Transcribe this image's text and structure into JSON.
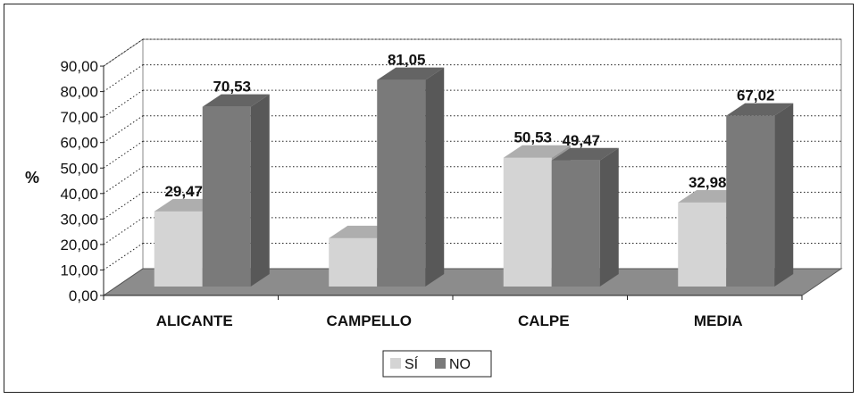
{
  "chart_data": {
    "type": "bar",
    "view": "3d-clustered-column",
    "categories": [
      "ALICANTE",
      "CAMPELLO",
      "CALPE",
      "MEDIA"
    ],
    "series": [
      {
        "name": "SÍ",
        "values": [
          29.47,
          18.95,
          50.53,
          32.98
        ],
        "labels": [
          "29,47",
          "",
          "50,53",
          "32,98"
        ],
        "color": "#d4d4d4"
      },
      {
        "name": "NO",
        "values": [
          70.53,
          81.05,
          49.47,
          67.02
        ],
        "labels": [
          "70,53",
          "81,05",
          "49,47",
          "67,02"
        ],
        "color": "#7a7a7a"
      }
    ],
    "ylabel": "%",
    "ylim": [
      0,
      90
    ],
    "yticks": [
      "0,00",
      "10,00",
      "20,00",
      "30,00",
      "40,00",
      "50,00",
      "60,00",
      "70,00",
      "80,00",
      "90,00"
    ],
    "grid": true,
    "legend_position": "bottom",
    "floor_color": "#8c8c8c"
  }
}
